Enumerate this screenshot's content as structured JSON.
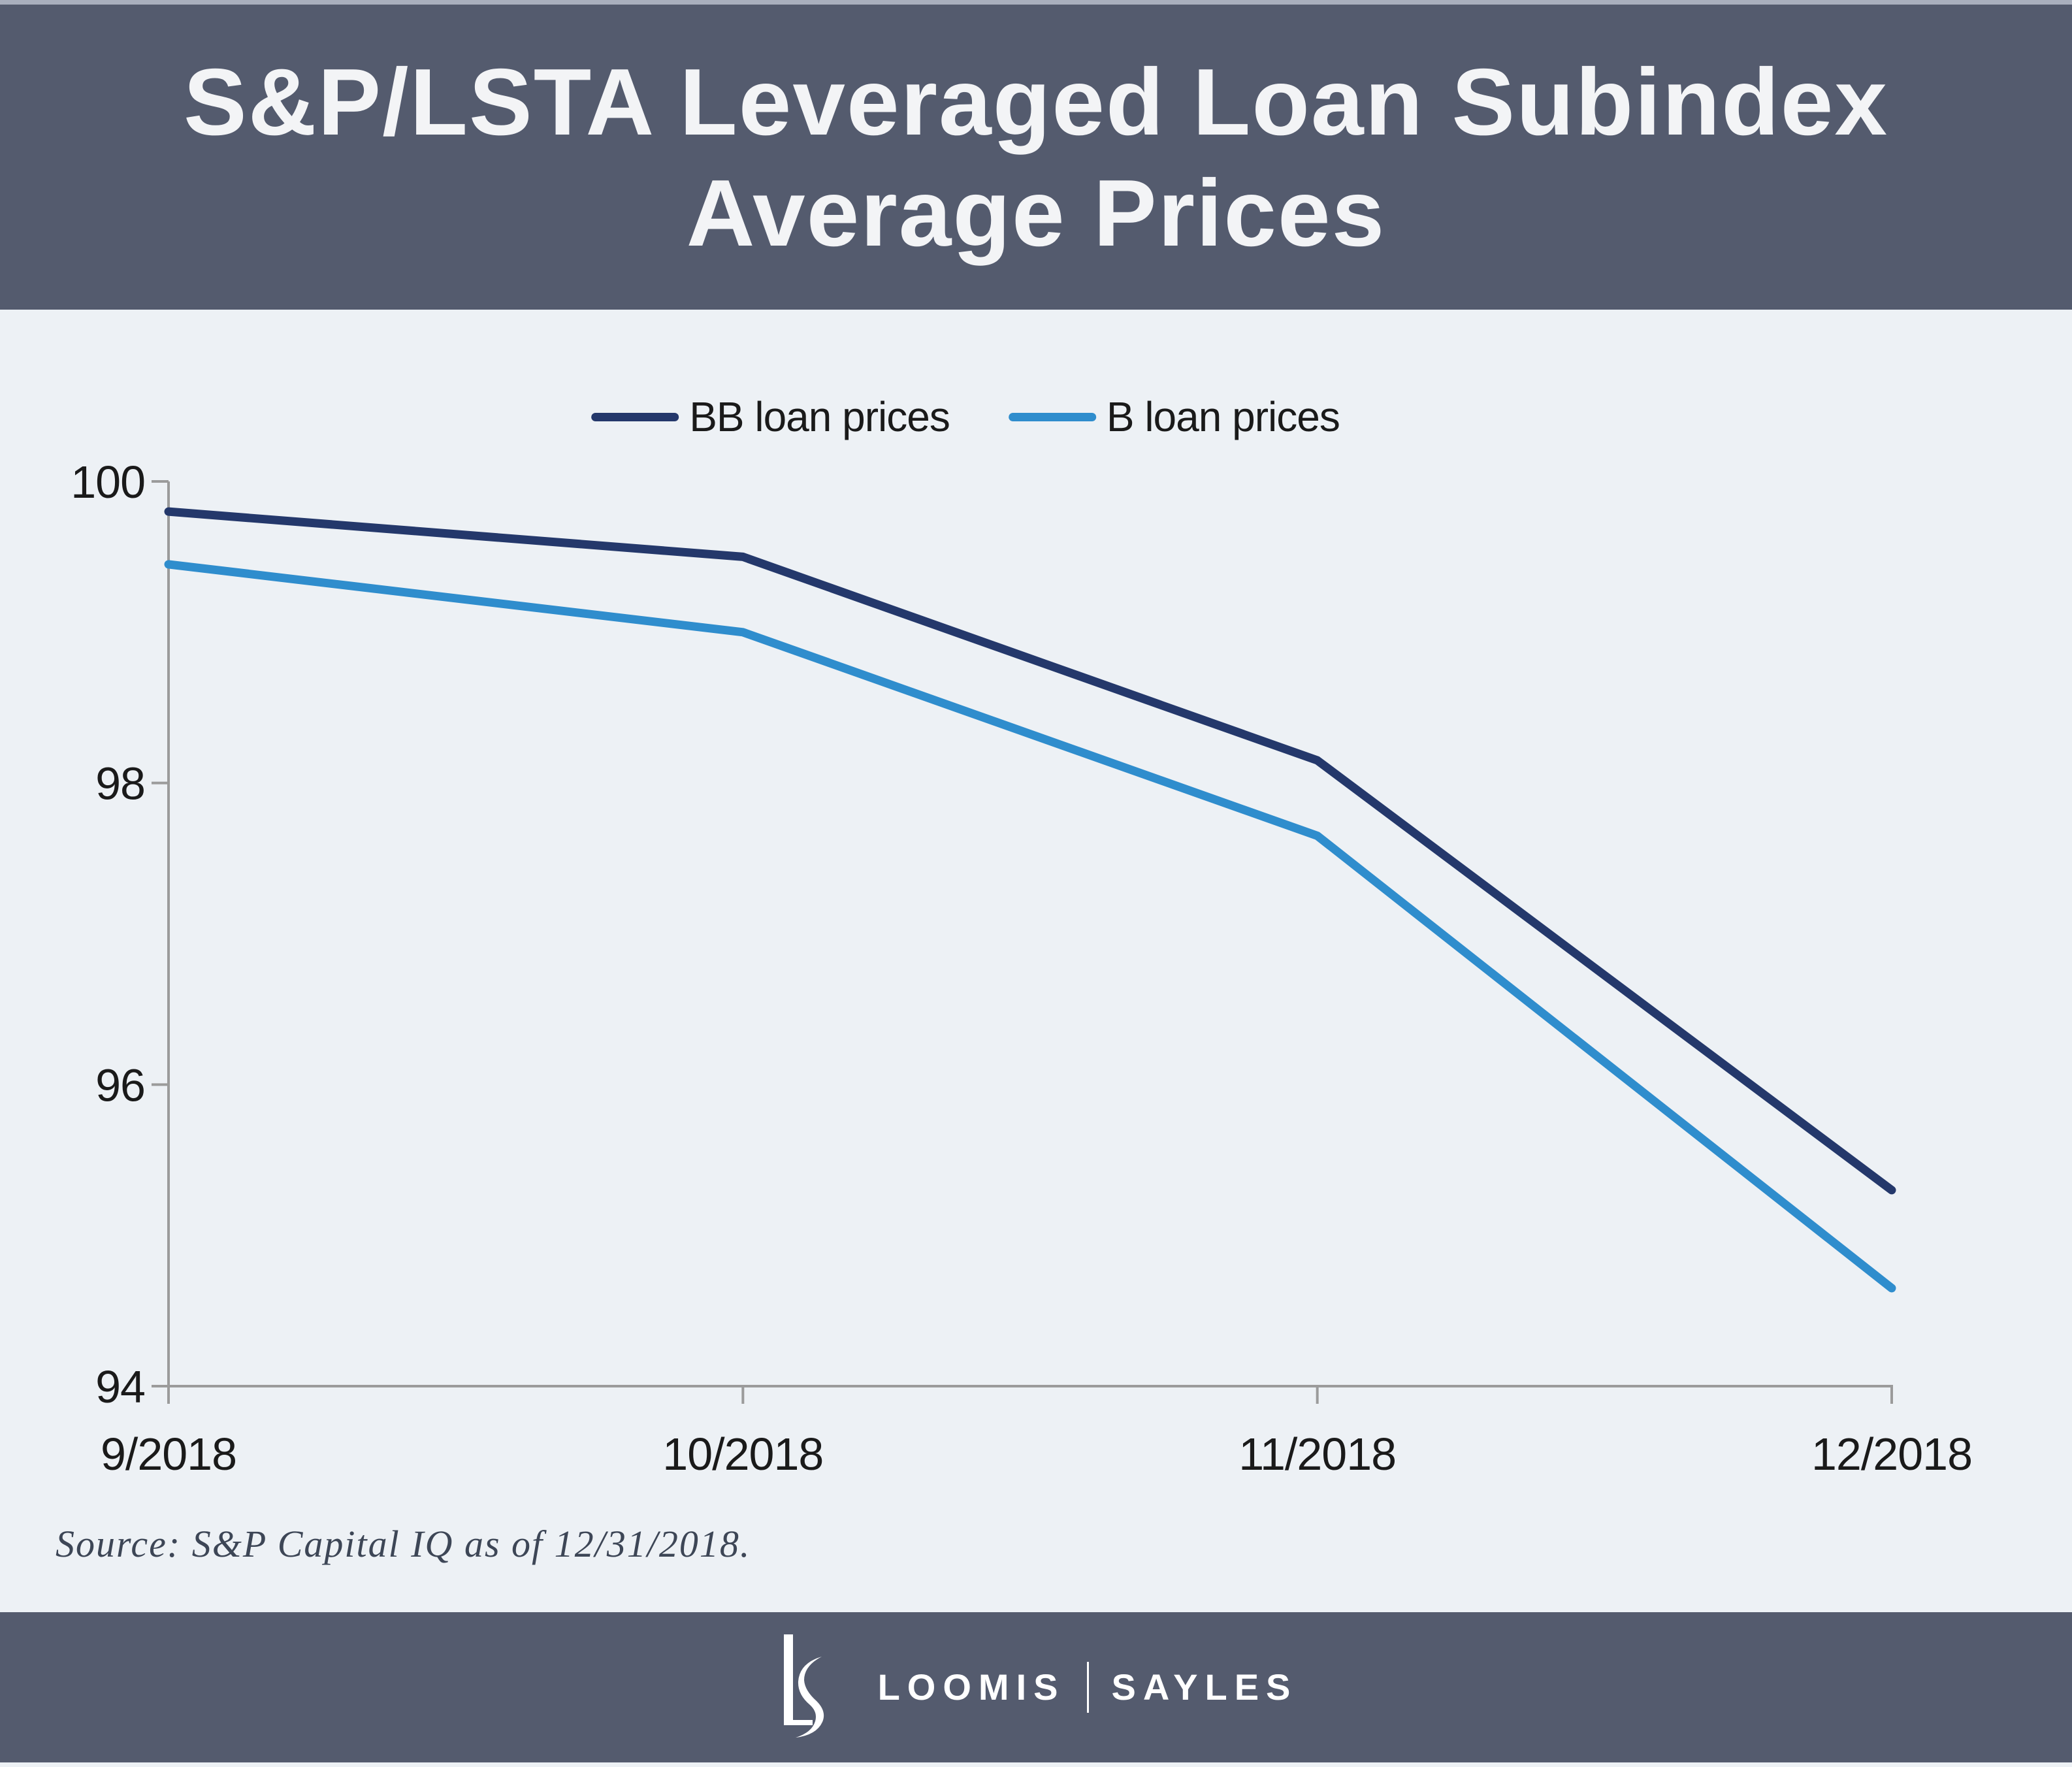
{
  "page": {
    "background_color": "#edf1f5",
    "band_color": "#545b6e",
    "edge_strip_color": "#a9afbd"
  },
  "header": {
    "title_line1": "S&P/LSTA Leveraged Loan Subindex",
    "title_line2": "Average Prices",
    "text_color": "#f3f4f6"
  },
  "chart_data": {
    "type": "line",
    "title": "S&P/LSTA Leveraged Loan Subindex Average Prices",
    "categories": [
      "9/2018",
      "10/2018",
      "11/2018",
      "12/2018"
    ],
    "series": [
      {
        "name": "BB loan prices",
        "color": "#24386b",
        "values": [
          99.8,
          99.5,
          98.15,
          95.3
        ]
      },
      {
        "name": "B loan prices",
        "color": "#2f8dcd",
        "values": [
          99.45,
          99.0,
          97.65,
          94.65
        ]
      }
    ],
    "xlabel": "",
    "ylabel": "",
    "ylim": [
      94,
      100
    ],
    "yticks": [
      94,
      96,
      98,
      100
    ],
    "grid": false,
    "legend_position": "top-center",
    "axis_color": "#9b9b9b",
    "tick_label_color": "#1a1a1a"
  },
  "source": {
    "text": "Source: S&P Capital IQ as of 12/31/2018."
  },
  "footer": {
    "brand_word1": "LOOMIS",
    "brand_word2": "SAYLES",
    "logo": "LS monogram"
  }
}
